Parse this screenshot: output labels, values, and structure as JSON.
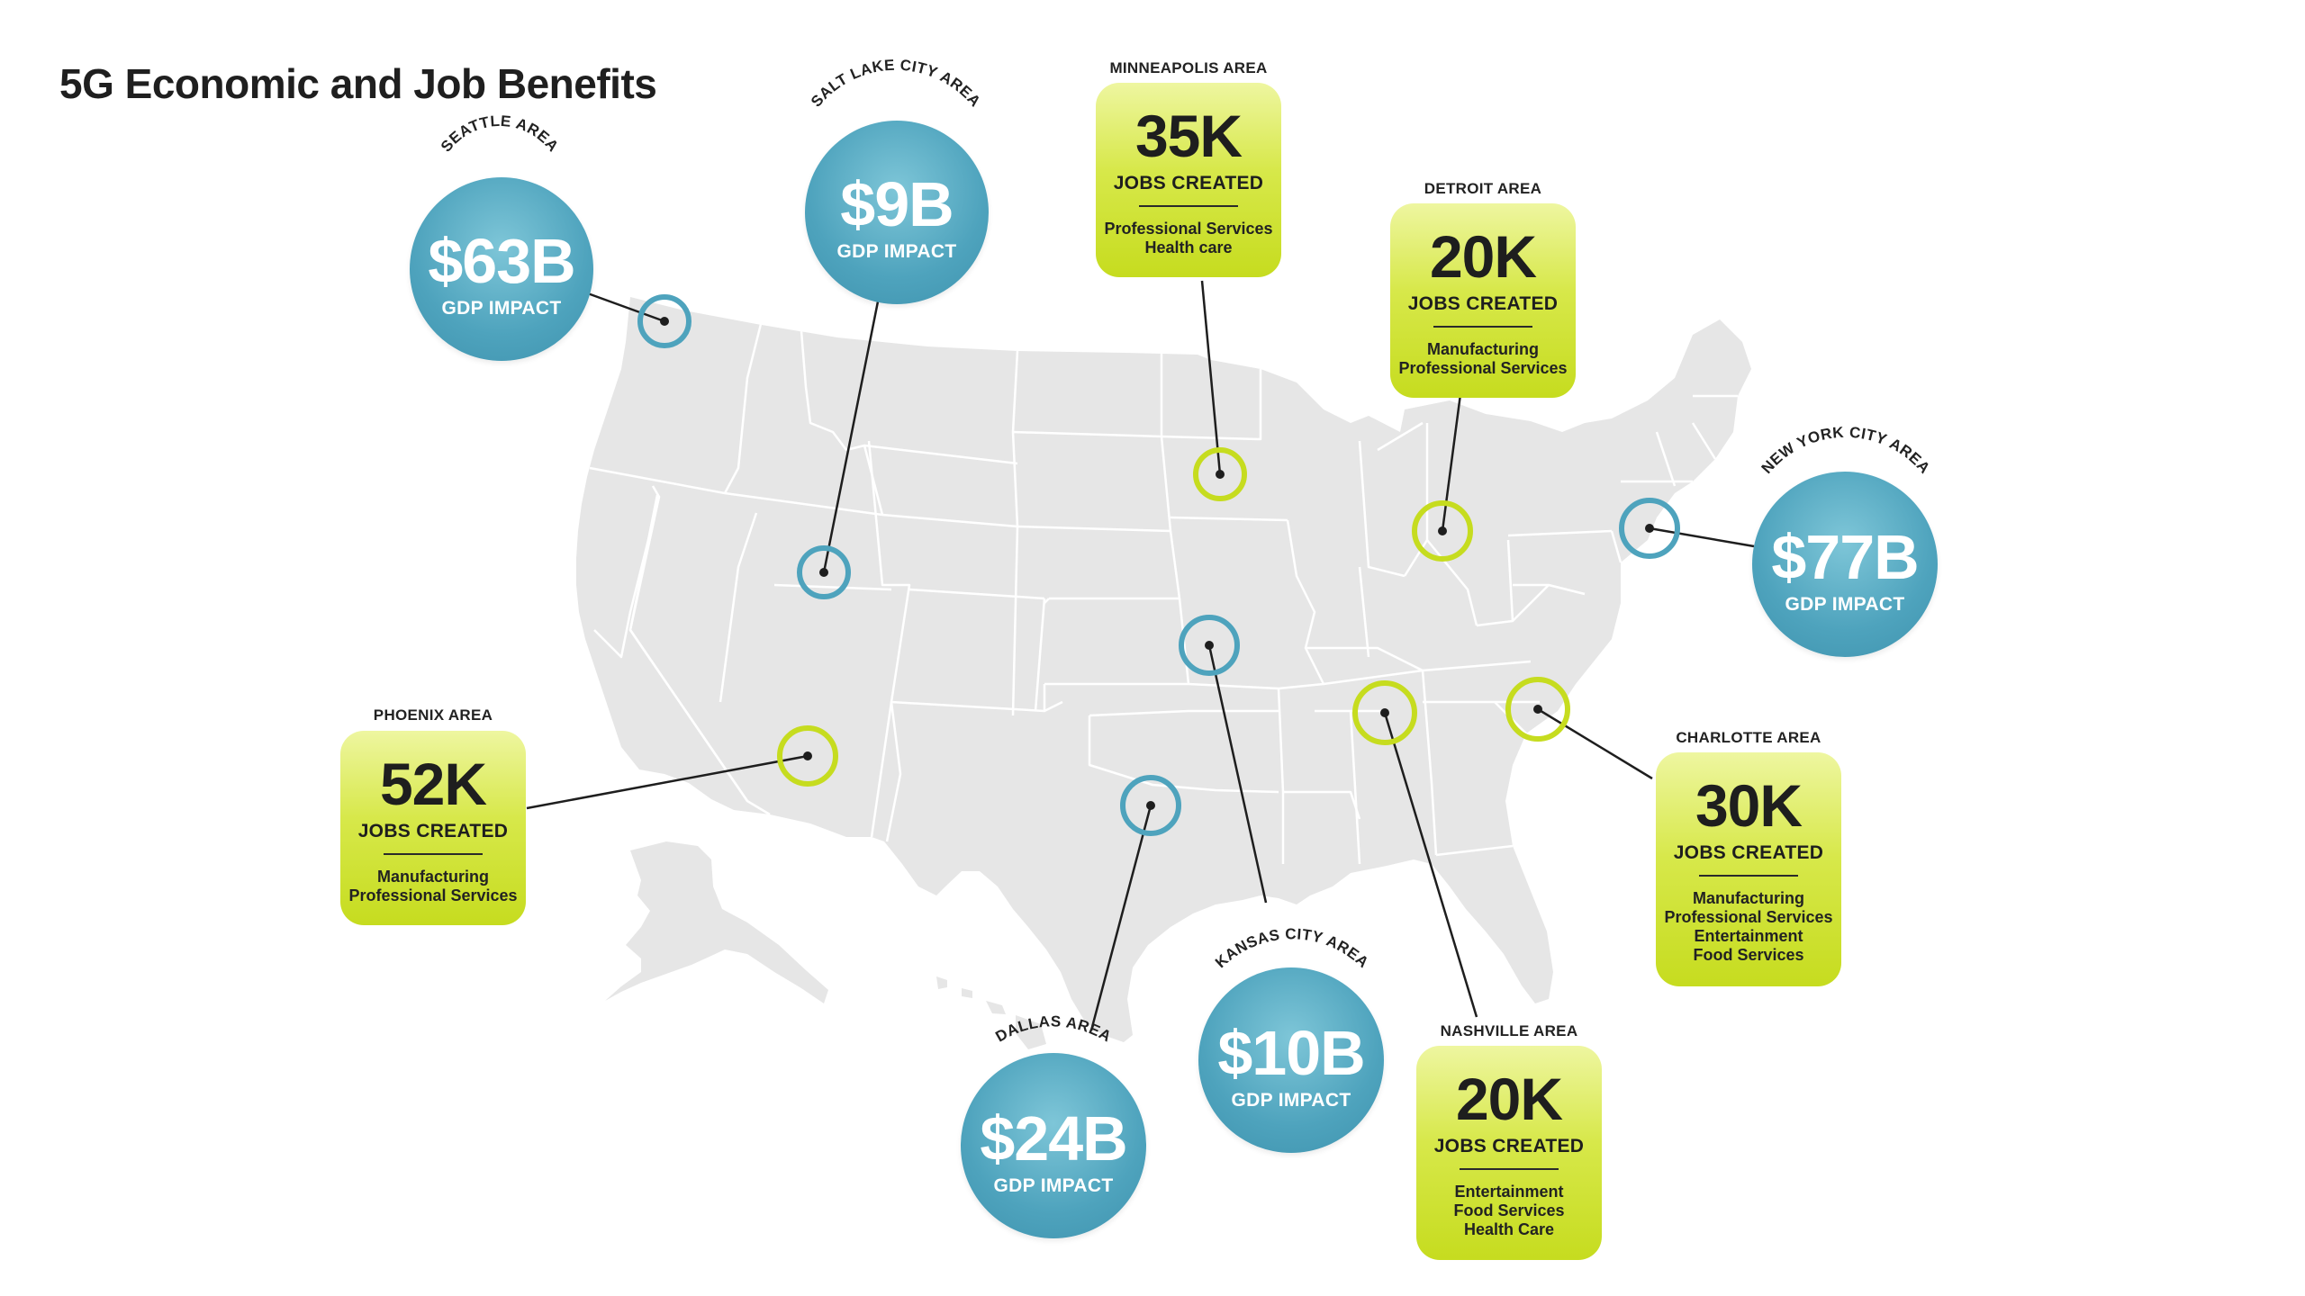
{
  "title": "5G Economic and Job Benefits",
  "colors": {
    "gdp_blue": "#4ea3bd",
    "jobs_green": "#c6dc1f",
    "map_gray": "#e6e6e6",
    "state_border": "#ffffff"
  },
  "gdp_areas": [
    {
      "area": "SEATTLE AREA",
      "value": "$63B",
      "caption": "GDP IMPACT"
    },
    {
      "area": "SALT LAKE CITY AREA",
      "value": "$9B",
      "caption": "GDP IMPACT"
    },
    {
      "area": "NEW YORK CITY AREA",
      "value": "$77B",
      "caption": "GDP IMPACT"
    },
    {
      "area": "DALLAS AREA",
      "value": "$24B",
      "caption": "GDP IMPACT"
    },
    {
      "area": "KANSAS CITY AREA",
      "value": "$10B",
      "caption": "GDP IMPACT"
    }
  ],
  "jobs_areas": [
    {
      "area": "MINNEAPOLIS AREA",
      "value": "35K",
      "caption": "JOBS CREATED",
      "sectors": [
        "Professional Services",
        "Health care"
      ]
    },
    {
      "area": "DETROIT AREA",
      "value": "20K",
      "caption": "JOBS CREATED",
      "sectors": [
        "Manufacturing",
        "Professional Services"
      ]
    },
    {
      "area": "PHOENIX AREA",
      "value": "52K",
      "caption": "JOBS CREATED",
      "sectors": [
        "Manufacturing",
        "Professional Services"
      ]
    },
    {
      "area": "CHARLOTTE AREA",
      "value": "30K",
      "caption": "JOBS CREATED",
      "sectors": [
        "Manufacturing",
        "Professional Services",
        "Entertainment",
        "Food Services"
      ]
    },
    {
      "area": "NASHVILLE AREA",
      "value": "20K",
      "caption": "JOBS CREATED",
      "sectors": [
        "Entertainment",
        "Food Services",
        "Health Care"
      ]
    }
  ]
}
